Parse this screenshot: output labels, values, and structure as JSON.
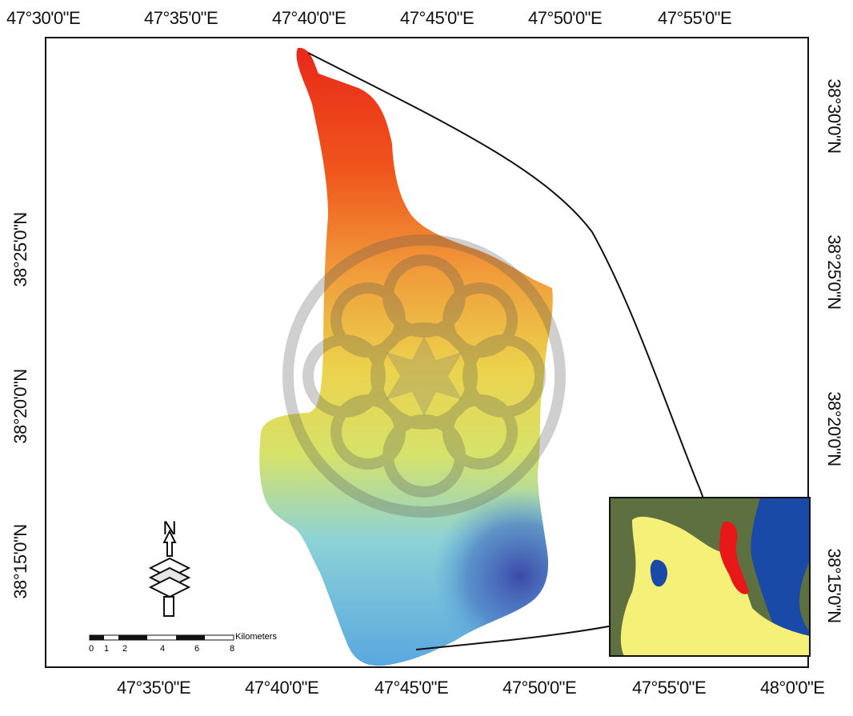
{
  "map": {
    "top_longitudes": [
      "47°30'0\"E",
      "47°35'0\"E",
      "47°40'0\"E",
      "47°45'0\"E",
      "47°50'0\"E",
      "47°55'0\"E"
    ],
    "bottom_longitudes": [
      "47°35'0\"E",
      "47°40'0\"E",
      "47°45'0\"E",
      "47°50'0\"E",
      "47°55'0\"E",
      "48°0'0\"E"
    ],
    "left_latitudes": [
      "38°25'0\"N",
      "38°20'0\"N",
      "38°15'0\"N"
    ],
    "right_latitudes": [
      "38°30'0\"N",
      "38°25'0\"N",
      "38°20'0\"N",
      "38°15'0\"N"
    ],
    "north_arrow_label": "N",
    "scale_bar": {
      "ticks": [
        "0",
        "1",
        "2",
        "4",
        "6",
        "8"
      ],
      "unit": "Kilometers"
    },
    "colors": {
      "elevation_high": "#e8281a",
      "elevation_mid": "#e8dc48",
      "elevation_low": "#3c4aa8",
      "inset_study_area": "#e81818",
      "inset_sea": "#1a4aa8",
      "inset_province": "#f4f078"
    }
  }
}
